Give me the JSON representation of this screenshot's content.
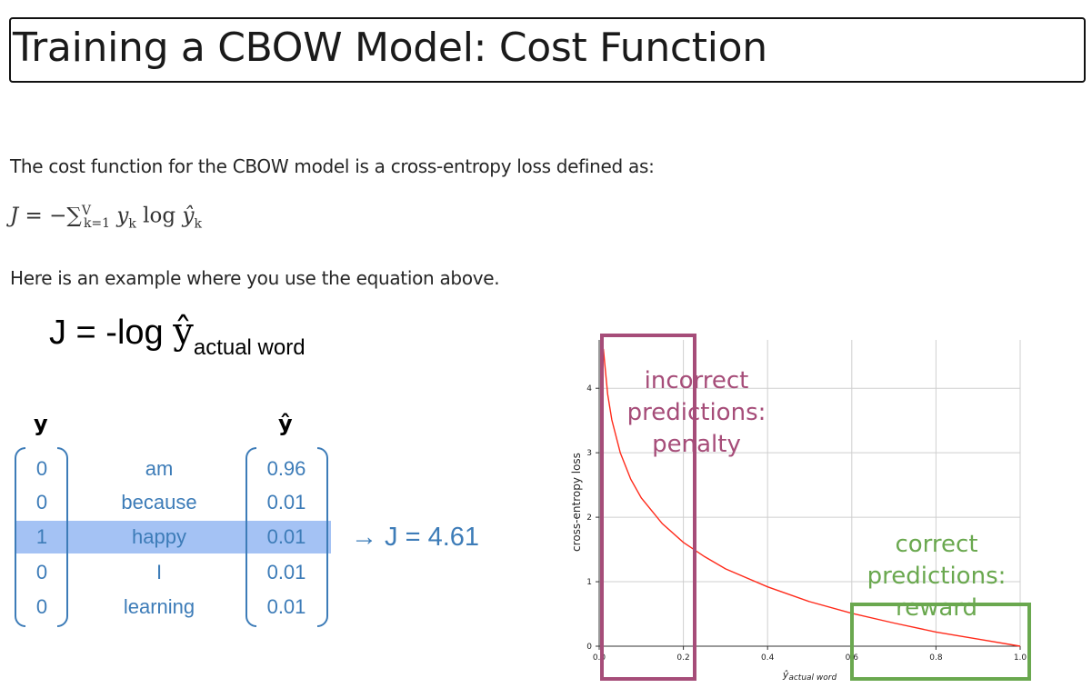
{
  "page": {
    "title": "Training a CBOW Model: Cost Function",
    "intro": "The cost function for the CBOW model is a cross-entropy loss defined as:",
    "example_text": "Here is an example where you use the equation above."
  },
  "formula": {
    "lhs": "J",
    "eq": " = −",
    "sum": "∑",
    "sum_upper": "V",
    "sum_lower": "k=1",
    "term_y": "y",
    "term_k": "k",
    "log": " log ",
    "term_yhat": "ŷ",
    "term_k2": "k"
  },
  "cost_example": {
    "lhs": "J = -log ",
    "yhat": "ŷ",
    "subscript": "actual word",
    "y_header": "y",
    "yhat_header": "ŷ",
    "rows": [
      {
        "y": "0",
        "word": "am",
        "yhat": "0.96"
      },
      {
        "y": "0",
        "word": "because",
        "yhat": "0.01"
      },
      {
        "y": "1",
        "word": "happy",
        "yhat": "0.01"
      },
      {
        "y": "0",
        "word": "I",
        "yhat": "0.01"
      },
      {
        "y": "0",
        "word": "learning",
        "yhat": "0.01"
      }
    ],
    "highlight_index": 2,
    "result": "→ J = 4.61",
    "text_color": "#3d7cb8",
    "highlight_color": "#a4c2f4"
  },
  "chart_data": {
    "type": "line",
    "function": "-log(x)",
    "x": [
      0.01,
      0.02,
      0.03,
      0.05,
      0.075,
      0.1,
      0.15,
      0.2,
      0.25,
      0.3,
      0.4,
      0.5,
      0.6,
      0.7,
      0.8,
      0.9,
      1.0
    ],
    "y": [
      4.61,
      3.91,
      3.51,
      3.0,
      2.59,
      2.3,
      1.9,
      1.61,
      1.39,
      1.2,
      0.92,
      0.69,
      0.51,
      0.36,
      0.22,
      0.11,
      0.0
    ],
    "xlim": [
      0.0,
      1.0
    ],
    "ylim": [
      0,
      4.75
    ],
    "xticks": [
      "0.0",
      "0.2",
      "0.4",
      "0.6",
      "0.8",
      "1.0"
    ],
    "yticks": [
      "0",
      "1",
      "2",
      "3",
      "4"
    ],
    "xlabel_main": "ŷ",
    "xlabel_sub": "actual word",
    "ylabel": "cross-entropy loss",
    "grid": true,
    "line_color": "#ff2a1a",
    "annotations": [
      {
        "text": [
          "incorrect",
          "predictions:",
          "penalty"
        ],
        "color": "#a64d79",
        "x_range": [
          0.0,
          0.2
        ]
      },
      {
        "text": [
          "correct",
          "predictions:",
          "reward"
        ],
        "color": "#6aa84f",
        "x_range": [
          0.6,
          1.0
        ]
      }
    ]
  }
}
